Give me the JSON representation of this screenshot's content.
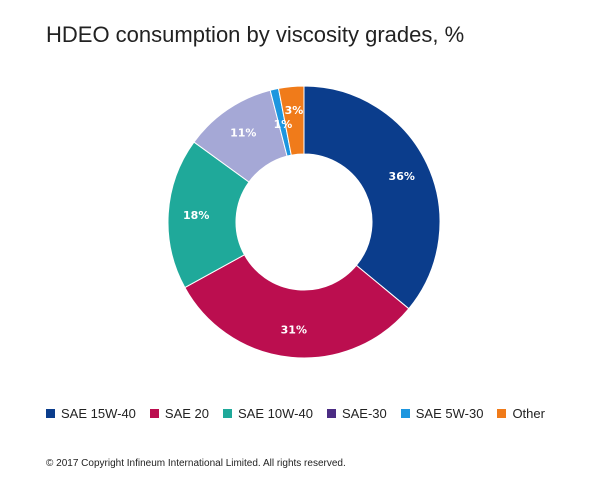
{
  "title": "HDEO consumption by viscosity grades, %",
  "copyright": "© 2017 Copyright Infineum International Limited. All rights reserved.",
  "chart_data": {
    "type": "pie",
    "donut": true,
    "start": "top, clockwise",
    "categories": [
      "SAE 15W-40",
      "SAE 20",
      "SAE 10W-40",
      "SAE-30",
      "SAE 5W-30",
      "Other"
    ],
    "values": [
      36,
      31,
      18,
      0,
      1,
      3
    ],
    "other_slices": [
      {
        "color": "#a5a8d6",
        "value": 11,
        "label": "11%"
      }
    ],
    "slice_order": [
      "SAE 15W-40",
      "SAE 20",
      "SAE 10W-40",
      "_unlabeled",
      "SAE-30",
      "SAE 5W-30",
      "Other"
    ],
    "labels": [
      "36%",
      "31%",
      "18%",
      "",
      "1%",
      "3%"
    ],
    "colors": [
      "#0b3d8c",
      "#bb0e4f",
      "#1fa99a",
      "#4b2c83",
      "#1d96df",
      "#f07b1a"
    ],
    "label_colors": {
      "36%": "#ffffff",
      "31%": "#ffffff",
      "18%": "#ffffff",
      "11%": "#ffffff",
      "1%": "#ffffff",
      "3%": "#ffffff"
    },
    "legend_position": "bottom"
  }
}
